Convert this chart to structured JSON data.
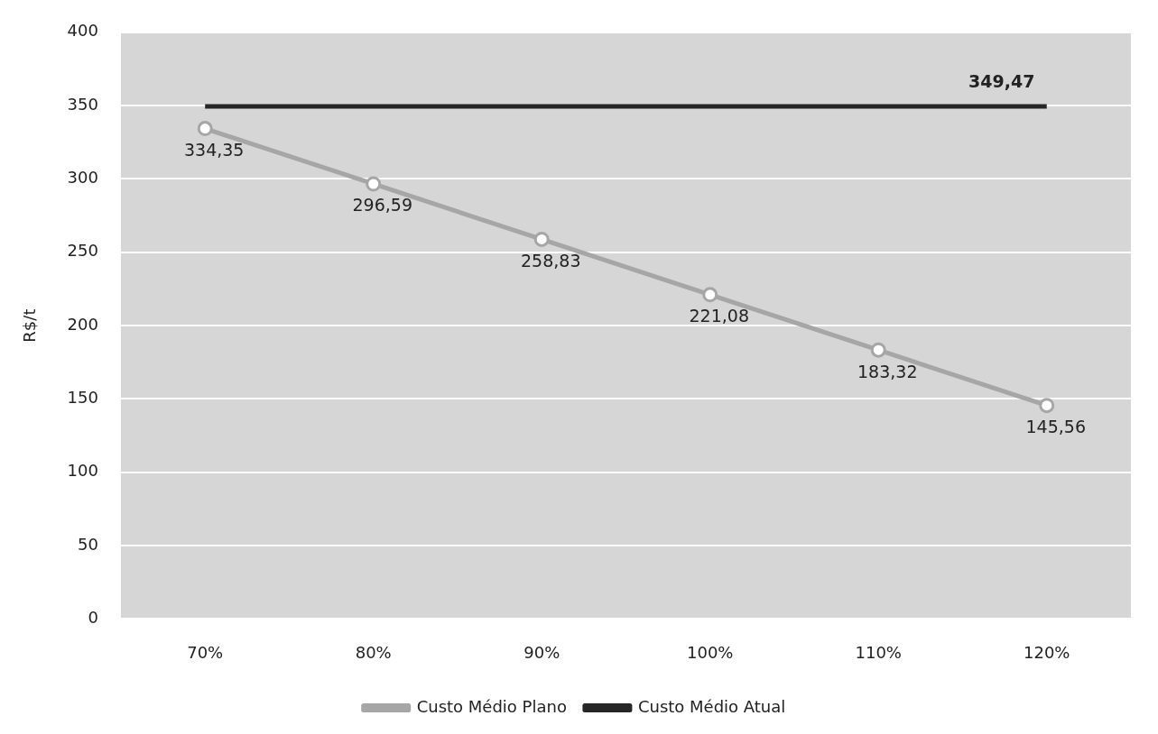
{
  "chart_data": {
    "type": "line",
    "ylabel": "R$/t",
    "categories": [
      "70%",
      "80%",
      "90%",
      "100%",
      "110%",
      "120%"
    ],
    "series": [
      {
        "name": "Custo Médio Plano",
        "color": "#a6a6a6",
        "marker": "circle",
        "values": [
          334.35,
          296.59,
          258.83,
          221.08,
          183.32,
          145.56
        ],
        "value_labels": [
          "334,35",
          "296,59",
          "258,83",
          "221,08",
          "183,32",
          "145,56"
        ]
      },
      {
        "name": "Custo Médio Atual",
        "color": "#262626",
        "marker": "none",
        "values": [
          349.47,
          349.47,
          349.47,
          349.47,
          349.47,
          349.47
        ],
        "value_labels": [
          null,
          null,
          null,
          null,
          null,
          "349,47"
        ]
      }
    ],
    "ylim": [
      0,
      400
    ],
    "yticks": [
      0,
      50,
      100,
      150,
      200,
      250,
      300,
      350,
      400
    ],
    "grid": "y",
    "legend": "bottom",
    "line_style": "solid"
  }
}
